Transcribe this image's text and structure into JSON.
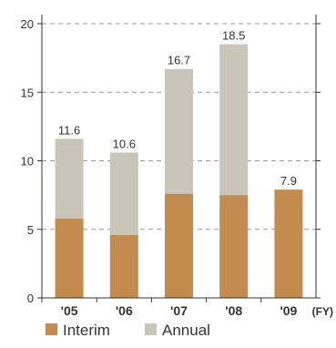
{
  "chart_data": {
    "type": "bar",
    "stacked": true,
    "categories": [
      "'05",
      "'06",
      "'07",
      "'08",
      "'09"
    ],
    "series": [
      {
        "name": "Interim",
        "values": [
          5.8,
          4.6,
          7.6,
          7.5,
          7.9
        ],
        "color": "#c38b4e"
      },
      {
        "name": "Annual",
        "values": [
          5.8,
          6.0,
          9.1,
          11.0,
          null
        ],
        "color": "#c9c5b9"
      }
    ],
    "totals": [
      "11.6",
      "10.6",
      "16.7",
      "18.5",
      "7.9"
    ],
    "xlabel": "",
    "ylabel": "",
    "x_unit": "(FY)",
    "ylim": [
      0,
      20
    ],
    "yticks": [
      0,
      5,
      10,
      15,
      20
    ],
    "grid": true,
    "legend_position": "bottom-left",
    "colors": {
      "axis": "#333333",
      "grid": "#999999",
      "text": "#333333"
    }
  }
}
